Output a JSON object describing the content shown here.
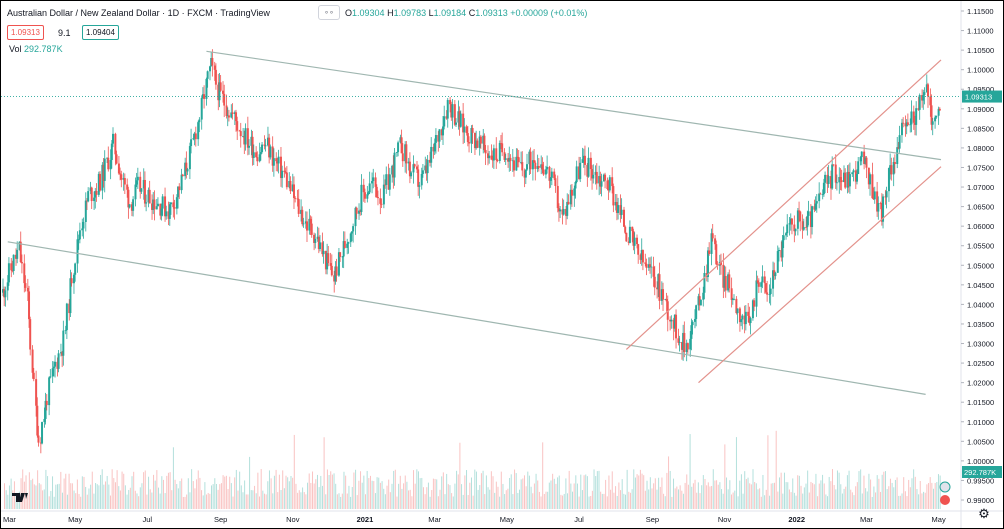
{
  "header": {
    "symbol_title": "Australian Dollar / New Zealand Dollar · 1D · FXCM · TradingView",
    "ohlc": {
      "o_label": "O",
      "o": "1.09304",
      "h_label": "H",
      "h": "1.09783",
      "l_label": "L",
      "l": "1.09184",
      "c_label": "C",
      "c": "1.09313",
      "change": "+0.00009 (+0.01%)"
    },
    "bid": "1.09313",
    "spread": "9.1",
    "ask": "1.09404",
    "volume_label": "Vol",
    "volume_value": "292.787K"
  },
  "colors": {
    "up": "#26a69a",
    "down": "#ef5350",
    "channel_gray": "#9fb6b0",
    "channel_red": "#e3928c",
    "price_line": "#26a69a"
  },
  "icons": {
    "brand": "tradingview-logo-icon",
    "settings": "gear-icon",
    "header_toggle": "eye-toggle-icon"
  },
  "chart_data": {
    "type": "candlestick",
    "title": "Australian Dollar / New Zealand Dollar · 1D · FXCM",
    "ylim": [
      0.99,
      1.115
    ],
    "y_ticks": [
      "1.11500",
      "1.11000",
      "1.10500",
      "1.10000",
      "1.09500",
      "1.09000",
      "1.08500",
      "1.08000",
      "1.07500",
      "1.07000",
      "1.06500",
      "1.06000",
      "1.05500",
      "1.05000",
      "1.04500",
      "1.04000",
      "1.03500",
      "1.03000",
      "1.02500",
      "1.02000",
      "1.01500",
      "1.01000",
      "1.00500",
      "1.00000",
      "0.99500",
      "0.99000"
    ],
    "x_ticks": [
      "Mar",
      "May",
      "Jul",
      "Sep",
      "Nov",
      "2021",
      "Mar",
      "May",
      "Jul",
      "Sep",
      "Nov",
      "2022",
      "Mar",
      "May"
    ],
    "x_range": [
      "2020-03-01",
      "2022-05-03"
    ],
    "last_price": 1.09313,
    "last_price_label": "1.09313",
    "volume_label": "292.787K",
    "price_path": [
      [
        "2020-03-01",
        1.043
      ],
      [
        "2020-03-08",
        1.049
      ],
      [
        "2020-03-15",
        1.054
      ],
      [
        "2020-03-22",
        1.041
      ],
      [
        "2020-03-29",
        1.013
      ],
      [
        "2020-04-01",
        1.005
      ],
      [
        "2020-04-08",
        1.017
      ],
      [
        "2020-04-15",
        1.025
      ],
      [
        "2020-04-22",
        1.031
      ],
      [
        "2020-04-29",
        1.048
      ],
      [
        "2020-05-06",
        1.06
      ],
      [
        "2020-05-13",
        1.068
      ],
      [
        "2020-05-20",
        1.07
      ],
      [
        "2020-05-27",
        1.075
      ],
      [
        "2020-06-03",
        1.081
      ],
      [
        "2020-06-10",
        1.072
      ],
      [
        "2020-06-17",
        1.066
      ],
      [
        "2020-06-24",
        1.07
      ],
      [
        "2020-07-01",
        1.068
      ],
      [
        "2020-07-10",
        1.066
      ],
      [
        "2020-07-20",
        1.064
      ],
      [
        "2020-07-30",
        1.071
      ],
      [
        "2020-08-08",
        1.08
      ],
      [
        "2020-08-16",
        1.09
      ],
      [
        "2020-08-24",
        1.101
      ],
      [
        "2020-08-31",
        1.094
      ],
      [
        "2020-09-08",
        1.09
      ],
      [
        "2020-09-16",
        1.086
      ],
      [
        "2020-09-24",
        1.082
      ],
      [
        "2020-10-02",
        1.079
      ],
      [
        "2020-10-10",
        1.081
      ],
      [
        "2020-10-18",
        1.076
      ],
      [
        "2020-10-26",
        1.073
      ],
      [
        "2020-11-04",
        1.066
      ],
      [
        "2020-11-12",
        1.061
      ],
      [
        "2020-11-20",
        1.058
      ],
      [
        "2020-11-28",
        1.052
      ],
      [
        "2020-12-06",
        1.047
      ],
      [
        "2020-12-14",
        1.054
      ],
      [
        "2020-12-22",
        1.061
      ],
      [
        "2020-12-30",
        1.068
      ],
      [
        "2021-01-08",
        1.071
      ],
      [
        "2021-01-16",
        1.067
      ],
      [
        "2021-01-24",
        1.074
      ],
      [
        "2021-02-01",
        1.081
      ],
      [
        "2021-02-09",
        1.074
      ],
      [
        "2021-02-17",
        1.071
      ],
      [
        "2021-02-25",
        1.076
      ],
      [
        "2021-03-05",
        1.084
      ],
      [
        "2021-03-13",
        1.092
      ],
      [
        "2021-03-21",
        1.087
      ],
      [
        "2021-03-29",
        1.084
      ],
      [
        "2021-04-06",
        1.082
      ],
      [
        "2021-04-14",
        1.079
      ],
      [
        "2021-04-22",
        1.078
      ],
      [
        "2021-04-30",
        1.08
      ],
      [
        "2021-05-08",
        1.076
      ],
      [
        "2021-05-16",
        1.074
      ],
      [
        "2021-05-24",
        1.078
      ],
      [
        "2021-06-01",
        1.076
      ],
      [
        "2021-06-09",
        1.071
      ],
      [
        "2021-06-17",
        1.062
      ],
      [
        "2021-06-25",
        1.069
      ],
      [
        "2021-07-03",
        1.076
      ],
      [
        "2021-07-11",
        1.075
      ],
      [
        "2021-07-19",
        1.072
      ],
      [
        "2021-07-27",
        1.071
      ],
      [
        "2021-08-04",
        1.064
      ],
      [
        "2021-08-12",
        1.058
      ],
      [
        "2021-08-20",
        1.053
      ],
      [
        "2021-08-28",
        1.049
      ],
      [
        "2021-09-05",
        1.046
      ],
      [
        "2021-09-13",
        1.04
      ],
      [
        "2021-09-21",
        1.034
      ],
      [
        "2021-09-29",
        1.029
      ],
      [
        "2021-10-07",
        1.036
      ],
      [
        "2021-10-15",
        1.046
      ],
      [
        "2021-10-21",
        1.058
      ],
      [
        "2021-10-29",
        1.048
      ],
      [
        "2021-11-06",
        1.044
      ],
      [
        "2021-11-14",
        1.038
      ],
      [
        "2021-11-22",
        1.034
      ],
      [
        "2021-11-30",
        1.048
      ],
      [
        "2021-12-08",
        1.042
      ],
      [
        "2021-12-16",
        1.052
      ],
      [
        "2021-12-24",
        1.058
      ],
      [
        "2022-01-01",
        1.062
      ],
      [
        "2022-01-09",
        1.06
      ],
      [
        "2022-01-17",
        1.064
      ],
      [
        "2022-01-25",
        1.07
      ],
      [
        "2022-02-02",
        1.074
      ],
      [
        "2022-02-10",
        1.072
      ],
      [
        "2022-02-18",
        1.073
      ],
      [
        "2022-02-26",
        1.077
      ],
      [
        "2022-03-06",
        1.07
      ],
      [
        "2022-03-14",
        1.063
      ],
      [
        "2022-03-22",
        1.075
      ],
      [
        "2022-03-30",
        1.083
      ],
      [
        "2022-04-07",
        1.087
      ],
      [
        "2022-04-15",
        1.09
      ],
      [
        "2022-04-21",
        1.096
      ],
      [
        "2022-04-27",
        1.085
      ],
      [
        "2022-05-03",
        1.093
      ]
    ],
    "trendlines": [
      {
        "name": "",
        "color": "#9fb6b0",
        "from": [
          "2020-08-20",
          1.1047
        ],
        "to": [
          "2022-05-03",
          1.077
        ]
      },
      {
        "name": "",
        "color": "#9fb6b0",
        "from": [
          "2020-03-05",
          1.056
        ],
        "to": [
          "2022-04-20",
          1.017
        ]
      },
      {
        "name": "",
        "color": "#e3928c",
        "from": [
          "2021-08-10",
          1.0285
        ],
        "to": [
          "2022-05-03",
          1.1025
        ]
      },
      {
        "name": "",
        "color": "#e3928c",
        "from": [
          "2021-10-10",
          1.02
        ],
        "to": [
          "2022-05-03",
          1.0752
        ]
      }
    ]
  }
}
